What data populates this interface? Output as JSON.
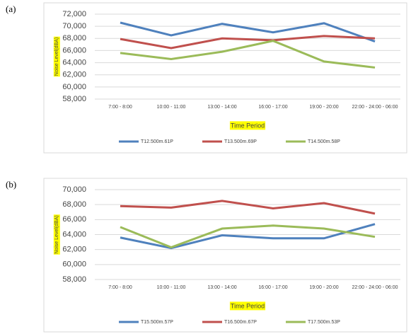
{
  "chart_data": [
    {
      "type": "line",
      "panel_label": "(a)",
      "y_label": "Noise Level(dBA)",
      "x_label": "Time Period",
      "categories": [
        "7:00 - 8:00",
        "10:00 - 11:00",
        "13:00 - 14:00",
        "16:00 - 17:00",
        "19:00 - 20:00",
        "22:00 - 24:00 - 06:00"
      ],
      "series": [
        {
          "name": "T12.500m.61P",
          "color": "#4f81bd",
          "values": [
            70600,
            68500,
            70400,
            69000,
            70500,
            67500
          ]
        },
        {
          "name": "T13.500m.69P",
          "color": "#c0504d",
          "values": [
            67900,
            66400,
            68000,
            67700,
            68400,
            68000
          ]
        },
        {
          "name": "T14.500m.58P",
          "color": "#9bbb59",
          "values": [
            65600,
            64600,
            65800,
            67600,
            64200,
            63200
          ]
        }
      ],
      "ylim": [
        58000,
        72000
      ],
      "yticks": [
        {
          "value": 58000,
          "label": "58,000"
        },
        {
          "value": 60000,
          "label": "60,000"
        },
        {
          "value": 62000,
          "label": "62,000"
        },
        {
          "value": 64000,
          "label": "64,000"
        },
        {
          "value": 66000,
          "label": "66,000"
        },
        {
          "value": 68000,
          "label": "68,000"
        },
        {
          "value": 70000,
          "label": "70,000"
        },
        {
          "value": 72000,
          "label": "72,000"
        }
      ],
      "legend": "bottom"
    },
    {
      "type": "line",
      "panel_label": "(b)",
      "y_label": "Noise Level(dBA)",
      "x_label": "Time Period",
      "categories": [
        "7:00 - 8:00",
        "10:00 - 11:00",
        "13:00 - 14:00",
        "16:00 - 17:00",
        "19:00 - 20:00",
        "22:00 - 24:00 - 06:00"
      ],
      "series": [
        {
          "name": "T15.500m.57P",
          "color": "#4f81bd",
          "values": [
            63600,
            62200,
            63900,
            63500,
            63500,
            65400
          ]
        },
        {
          "name": "T16.500m.67P",
          "color": "#c0504d",
          "values": [
            67800,
            67600,
            68500,
            67500,
            68200,
            66800
          ]
        },
        {
          "name": "T17.500m.53P",
          "color": "#9bbb59",
          "values": [
            65000,
            62300,
            64800,
            65200,
            64800,
            63700
          ]
        }
      ],
      "ylim": [
        58000,
        70000
      ],
      "yticks": [
        {
          "value": 58000,
          "label": "58,000"
        },
        {
          "value": 60000,
          "label": "60,000"
        },
        {
          "value": 62000,
          "label": "62,000"
        },
        {
          "value": 64000,
          "label": "64,000"
        },
        {
          "value": 66000,
          "label": "66,000"
        },
        {
          "value": 68000,
          "label": "68,000"
        },
        {
          "value": 70000,
          "label": "70,000"
        }
      ],
      "legend": "bottom"
    }
  ]
}
